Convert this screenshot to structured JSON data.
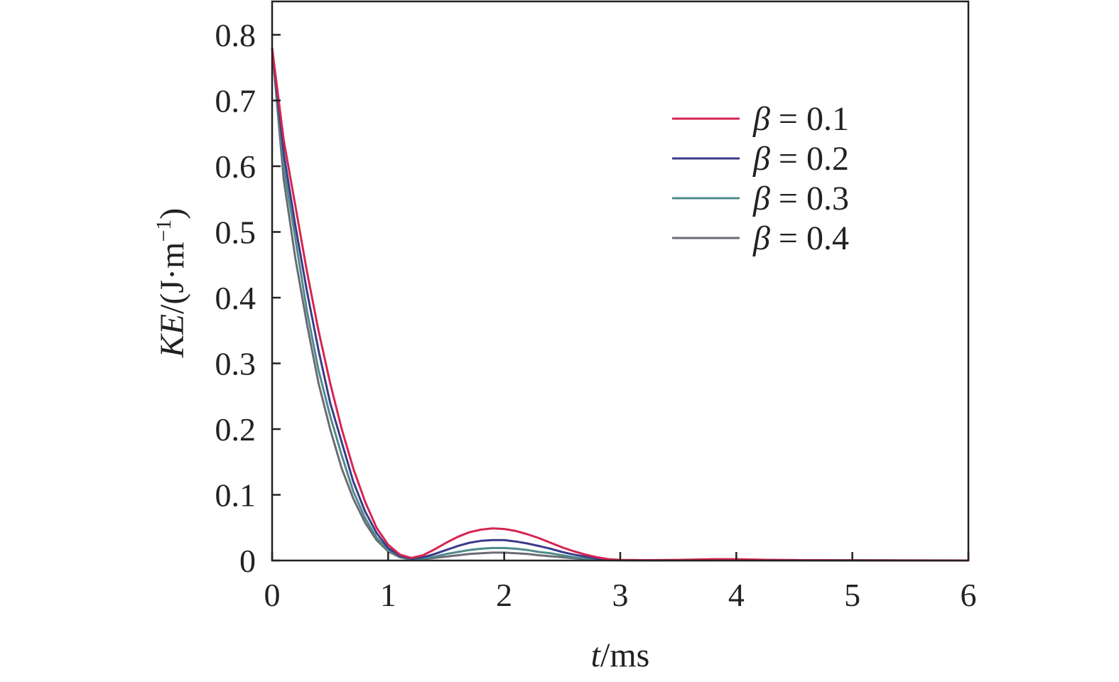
{
  "chart_data": {
    "type": "line",
    "title": "",
    "xlabel": {
      "var": "t",
      "unit": "/ms"
    },
    "ylabel": {
      "var": "KE",
      "unit": "/(J·m",
      "exp": "−1",
      "close": ")"
    },
    "xlim": [
      0,
      6
    ],
    "ylim": [
      0,
      0.8
    ],
    "xticks": [
      "0",
      "1",
      "2",
      "3",
      "4",
      "5",
      "6"
    ],
    "yticks": [
      "0",
      "0.1",
      "0.2",
      "0.3",
      "0.4",
      "0.5",
      "0.6",
      "0.7",
      "0.8"
    ],
    "grid": false,
    "legend_position": "top-right",
    "series": [
      {
        "name": "β = 0.1",
        "symbol": "β",
        "value": "= 0.1",
        "color": "#d6254f",
        "points": [
          [
            0,
            0.78
          ],
          [
            0.1,
            0.64
          ],
          [
            0.2,
            0.54
          ],
          [
            0.3,
            0.44
          ],
          [
            0.4,
            0.35
          ],
          [
            0.5,
            0.27
          ],
          [
            0.6,
            0.2
          ],
          [
            0.7,
            0.14
          ],
          [
            0.8,
            0.09
          ],
          [
            0.9,
            0.05
          ],
          [
            1.0,
            0.024
          ],
          [
            1.1,
            0.009
          ],
          [
            1.2,
            0.004
          ],
          [
            1.3,
            0.008
          ],
          [
            1.4,
            0.017
          ],
          [
            1.5,
            0.027
          ],
          [
            1.6,
            0.036
          ],
          [
            1.7,
            0.043
          ],
          [
            1.8,
            0.047
          ],
          [
            1.9,
            0.049
          ],
          [
            2.0,
            0.048
          ],
          [
            2.1,
            0.045
          ],
          [
            2.2,
            0.04
          ],
          [
            2.3,
            0.034
          ],
          [
            2.4,
            0.027
          ],
          [
            2.5,
            0.02
          ],
          [
            2.6,
            0.014
          ],
          [
            2.7,
            0.009
          ],
          [
            2.8,
            0.005
          ],
          [
            2.9,
            0.002
          ],
          [
            3.0,
            0.001
          ],
          [
            3.2,
            0.0005
          ],
          [
            3.5,
            0.001
          ],
          [
            3.8,
            0.002
          ],
          [
            4.0,
            0.002
          ],
          [
            4.3,
            0.001
          ],
          [
            4.6,
            0.0005
          ],
          [
            5.0,
            0.0002
          ],
          [
            5.5,
            0.0001
          ],
          [
            6.0,
            0
          ]
        ]
      },
      {
        "name": "β = 0.2",
        "symbol": "β",
        "value": "= 0.2",
        "color": "#3b3b8a",
        "points": [
          [
            0,
            0.78
          ],
          [
            0.1,
            0.62
          ],
          [
            0.2,
            0.51
          ],
          [
            0.3,
            0.41
          ],
          [
            0.4,
            0.32
          ],
          [
            0.5,
            0.24
          ],
          [
            0.6,
            0.18
          ],
          [
            0.7,
            0.12
          ],
          [
            0.8,
            0.075
          ],
          [
            0.9,
            0.042
          ],
          [
            1.0,
            0.019
          ],
          [
            1.1,
            0.007
          ],
          [
            1.2,
            0.003
          ],
          [
            1.3,
            0.005
          ],
          [
            1.4,
            0.01
          ],
          [
            1.5,
            0.016
          ],
          [
            1.6,
            0.022
          ],
          [
            1.7,
            0.027
          ],
          [
            1.8,
            0.03
          ],
          [
            1.9,
            0.031
          ],
          [
            2.0,
            0.031
          ],
          [
            2.1,
            0.029
          ],
          [
            2.2,
            0.026
          ],
          [
            2.3,
            0.022
          ],
          [
            2.4,
            0.018
          ],
          [
            2.5,
            0.013
          ],
          [
            2.6,
            0.009
          ],
          [
            2.7,
            0.006
          ],
          [
            2.8,
            0.003
          ],
          [
            2.9,
            0.0015
          ],
          [
            3.0,
            0.0006
          ],
          [
            3.3,
            0.0003
          ],
          [
            3.7,
            0.0008
          ],
          [
            4.0,
            0.001
          ],
          [
            4.4,
            0.0006
          ],
          [
            5.0,
            0.0002
          ],
          [
            6.0,
            0
          ]
        ]
      },
      {
        "name": "β = 0.3",
        "symbol": "β",
        "value": "= 0.3",
        "color": "#4f8a8a",
        "points": [
          [
            0,
            0.78
          ],
          [
            0.1,
            0.6
          ],
          [
            0.2,
            0.49
          ],
          [
            0.3,
            0.38
          ],
          [
            0.4,
            0.29
          ],
          [
            0.5,
            0.22
          ],
          [
            0.6,
            0.16
          ],
          [
            0.7,
            0.105
          ],
          [
            0.8,
            0.065
          ],
          [
            0.9,
            0.035
          ],
          [
            1.0,
            0.016
          ],
          [
            1.1,
            0.006
          ],
          [
            1.2,
            0.002
          ],
          [
            1.3,
            0.003
          ],
          [
            1.4,
            0.006
          ],
          [
            1.5,
            0.01
          ],
          [
            1.6,
            0.013
          ],
          [
            1.7,
            0.016
          ],
          [
            1.8,
            0.018
          ],
          [
            1.9,
            0.019
          ],
          [
            2.0,
            0.019
          ],
          [
            2.1,
            0.018
          ],
          [
            2.2,
            0.016
          ],
          [
            2.3,
            0.013
          ],
          [
            2.4,
            0.011
          ],
          [
            2.5,
            0.008
          ],
          [
            2.6,
            0.005
          ],
          [
            2.7,
            0.003
          ],
          [
            2.8,
            0.002
          ],
          [
            2.9,
            0.001
          ],
          [
            3.0,
            0.0004
          ],
          [
            3.5,
            0.0002
          ],
          [
            4.0,
            0.0004
          ],
          [
            4.5,
            0.0002
          ],
          [
            5.0,
            0.0001
          ],
          [
            6.0,
            0
          ]
        ]
      },
      {
        "name": "β = 0.4",
        "symbol": "β",
        "value": "= 0.4",
        "color": "#6b6b75",
        "points": [
          [
            0,
            0.78
          ],
          [
            0.1,
            0.58
          ],
          [
            0.2,
            0.46
          ],
          [
            0.3,
            0.36
          ],
          [
            0.4,
            0.27
          ],
          [
            0.5,
            0.2
          ],
          [
            0.6,
            0.14
          ],
          [
            0.7,
            0.094
          ],
          [
            0.8,
            0.058
          ],
          [
            0.9,
            0.031
          ],
          [
            1.0,
            0.014
          ],
          [
            1.1,
            0.005
          ],
          [
            1.2,
            0.0015
          ],
          [
            1.3,
            0.002
          ],
          [
            1.4,
            0.004
          ],
          [
            1.5,
            0.006
          ],
          [
            1.6,
            0.008
          ],
          [
            1.7,
            0.01
          ],
          [
            1.8,
            0.011
          ],
          [
            1.9,
            0.012
          ],
          [
            2.0,
            0.012
          ],
          [
            2.1,
            0.011
          ],
          [
            2.2,
            0.01
          ],
          [
            2.3,
            0.008
          ],
          [
            2.4,
            0.0065
          ],
          [
            2.5,
            0.005
          ],
          [
            2.6,
            0.0035
          ],
          [
            2.7,
            0.002
          ],
          [
            2.8,
            0.001
          ],
          [
            2.9,
            0.0005
          ],
          [
            3.0,
            0.0002
          ],
          [
            4.0,
            0.0002
          ],
          [
            5.0,
            0.0001
          ],
          [
            6.0,
            0
          ]
        ]
      }
    ]
  }
}
